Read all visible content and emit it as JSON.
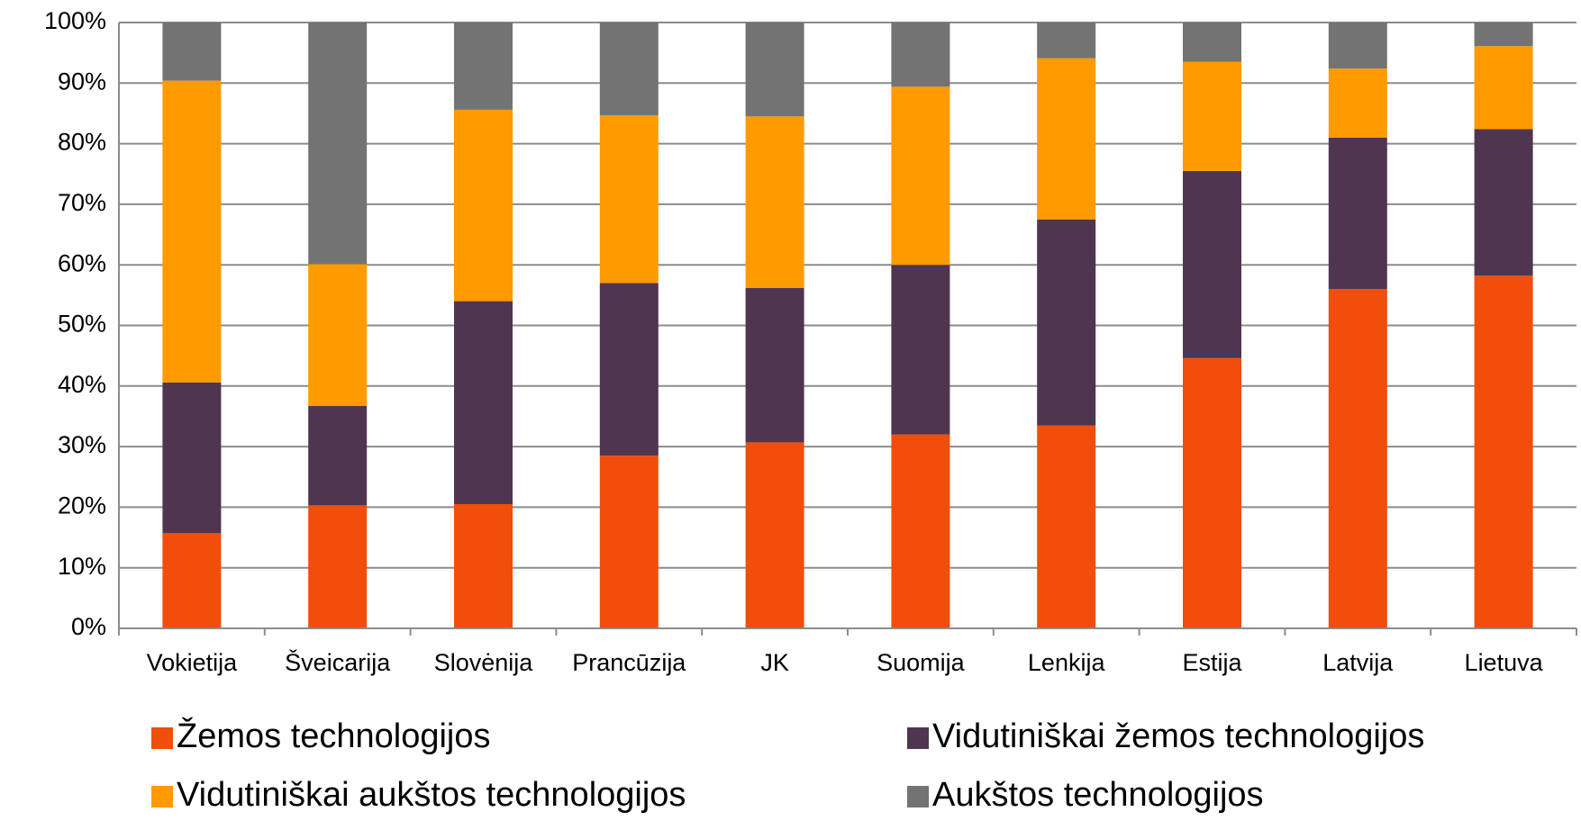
{
  "chart_data": {
    "type": "stacked_bar",
    "categories": [
      "Vokietija",
      "Šveicarija",
      "Slovėnija",
      "Prancūzija",
      "JK",
      "Suomija",
      "Lenkija",
      "Estija",
      "Latvija",
      "Lietuva"
    ],
    "series": [
      {
        "name": "Žemos technologijos",
        "color": "#f04e0a",
        "values": [
          15.7,
          20.3,
          20.5,
          28.5,
          30.7,
          32.0,
          33.5,
          44.6,
          56.0,
          58.2
        ]
      },
      {
        "name": "Vidutiniškai žemos technologijos",
        "color": "#503550",
        "values": [
          24.9,
          16.4,
          33.5,
          28.5,
          25.5,
          28.0,
          34.0,
          30.9,
          25.0,
          24.2
        ]
      },
      {
        "name": "Vidutiniškai aukštos technologijos",
        "color": "#ff9a00",
        "values": [
          49.8,
          23.4,
          31.6,
          27.7,
          28.3,
          29.4,
          26.6,
          18.0,
          11.4,
          13.7
        ]
      },
      {
        "name": "Aukštos technologijos",
        "color": "#737373",
        "values": [
          9.6,
          39.9,
          14.4,
          15.3,
          15.5,
          10.6,
          5.9,
          6.5,
          7.6,
          3.9
        ]
      }
    ],
    "ylim": [
      0,
      100
    ],
    "yticks": [
      {
        "value": 0,
        "label": "0%"
      },
      {
        "value": 10,
        "label": "10%"
      },
      {
        "value": 20,
        "label": "20%"
      },
      {
        "value": 30,
        "label": "30%"
      },
      {
        "value": 40,
        "label": "40%"
      },
      {
        "value": 50,
        "label": "50%"
      },
      {
        "value": 60,
        "label": "60%"
      },
      {
        "value": 70,
        "label": "70%"
      },
      {
        "value": 80,
        "label": "80%"
      },
      {
        "value": 90,
        "label": "90%"
      },
      {
        "value": 100,
        "label": "100%"
      }
    ],
    "grid": true
  }
}
